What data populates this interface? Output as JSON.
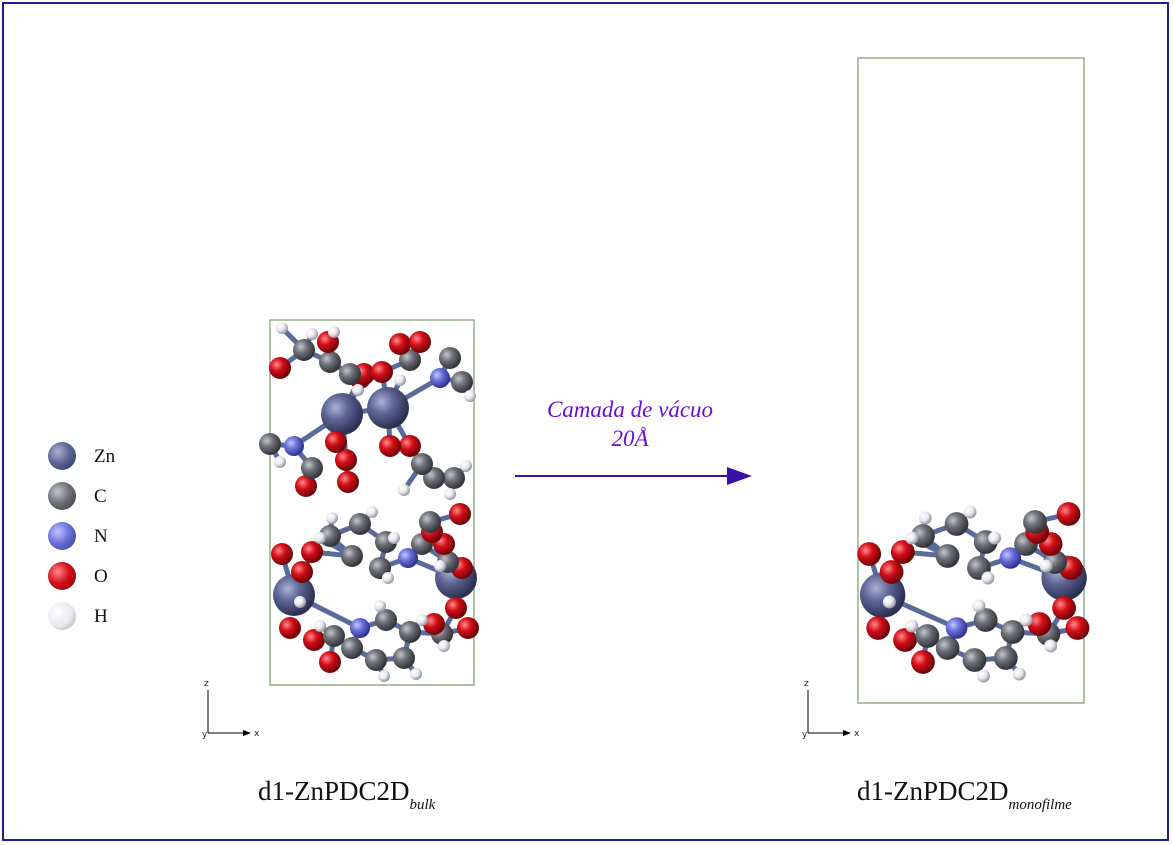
{
  "legend": [
    {
      "label": "Zn",
      "color": "#5d6594"
    },
    {
      "label": "C",
      "color": "#6e7078"
    },
    {
      "label": "N",
      "color": "#6b70d8"
    },
    {
      "label": "O",
      "color": "#d40d18"
    },
    {
      "label": "H",
      "color": "#e8e8ee"
    }
  ],
  "arrow": {
    "line1": "Camada de vácuo",
    "line2": "20Å",
    "color": "#3a10a8"
  },
  "left_structure": {
    "caption_main": "d1-ZnPDC2D",
    "caption_sub": "bulk"
  },
  "right_structure": {
    "caption_main": "d1-ZnPDC2D",
    "caption_sub": "monofilme"
  },
  "axes": {
    "vertical": "z",
    "horizontal": "x",
    "depth": "y"
  },
  "colors": {
    "cell_border": "#9db38f",
    "frame": "#1e1e8c",
    "bond": "#5a6a9a"
  }
}
